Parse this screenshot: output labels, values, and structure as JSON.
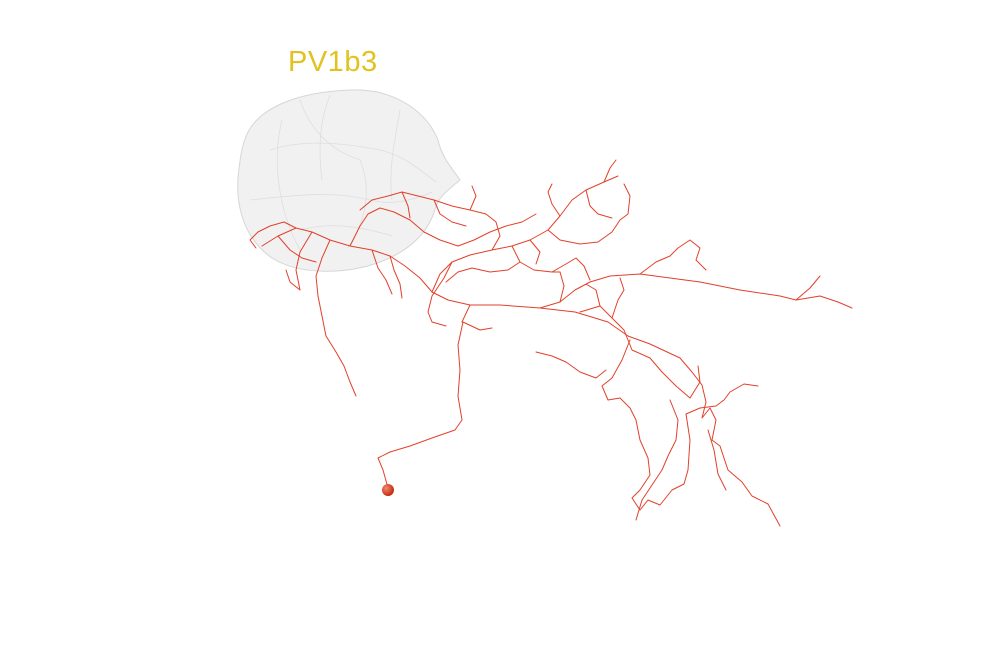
{
  "region": {
    "label": "PV1b3",
    "label_color": "#e2c21f",
    "mesh_fill": "#eeeeee",
    "mesh_stroke": "#d6d6d6"
  },
  "neuron": {
    "axon_color": "#e2402a",
    "soma_color": "#c42a12",
    "soma_highlight": "#f08a6a"
  }
}
